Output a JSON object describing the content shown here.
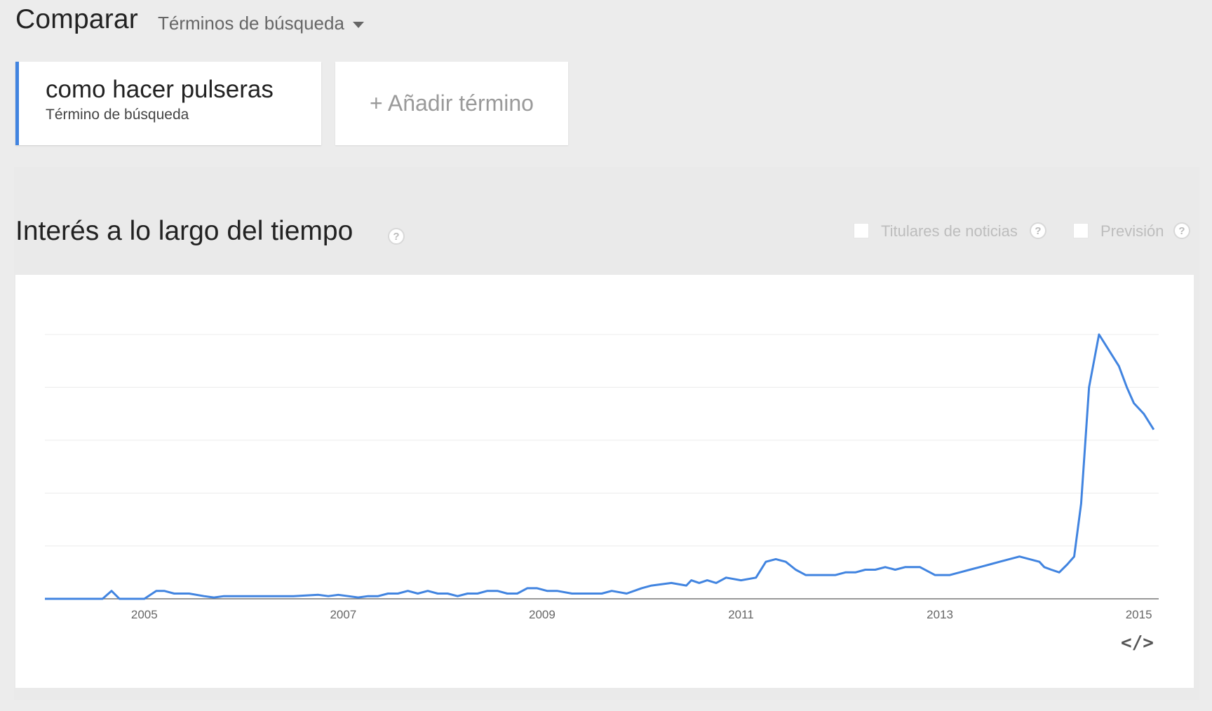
{
  "header": {
    "title": "Comparar",
    "dropdown_label": "Términos de búsqueda"
  },
  "terms": [
    {
      "name": "como hacer pulseras",
      "type": "Término de búsqueda",
      "color": "#4184e0"
    }
  ],
  "add_term_label": "+ Añadir término",
  "section": {
    "title": "Interés a lo largo del tiempo",
    "help_glyph": "?",
    "options": [
      {
        "label": "Titulares de noticias",
        "checked": false
      },
      {
        "label": "Previsión",
        "checked": false
      }
    ]
  },
  "embed_label": "</>",
  "chart_data": {
    "type": "line",
    "title": "",
    "xlabel": "",
    "ylabel": "",
    "x_ticks": [
      "2005",
      "2007",
      "2009",
      "2011",
      "2013",
      "2015"
    ],
    "xlim": [
      2004.0,
      2015.2
    ],
    "ylim": [
      0,
      100
    ],
    "grid": true,
    "series": [
      {
        "color": "#4184e0",
        "x": [
          2004.0,
          2004.58,
          2004.67,
          2004.75,
          2005.0,
          2005.12,
          2005.2,
          2005.3,
          2005.45,
          2005.6,
          2005.7,
          2005.8,
          2005.9,
          2006.0,
          2006.2,
          2006.5,
          2006.75,
          2006.85,
          2006.95,
          2007.05,
          2007.15,
          2007.25,
          2007.35,
          2007.45,
          2007.55,
          2007.65,
          2007.75,
          2007.85,
          2007.95,
          2008.05,
          2008.15,
          2008.25,
          2008.35,
          2008.45,
          2008.55,
          2008.65,
          2008.75,
          2008.85,
          2008.95,
          2009.05,
          2009.15,
          2009.3,
          2009.45,
          2009.6,
          2009.7,
          2009.85,
          2010.0,
          2010.1,
          2010.3,
          2010.45,
          2010.5,
          2010.58,
          2010.66,
          2010.75,
          2010.85,
          2011.0,
          2011.15,
          2011.25,
          2011.35,
          2011.45,
          2011.55,
          2011.65,
          2011.75,
          2011.85,
          2011.95,
          2012.05,
          2012.15,
          2012.25,
          2012.35,
          2012.45,
          2012.55,
          2012.65,
          2012.8,
          2012.95,
          2013.1,
          2013.2,
          2013.3,
          2013.4,
          2013.5,
          2013.6,
          2013.7,
          2013.8,
          2013.9,
          2014.0,
          2014.05,
          2014.12,
          2014.2,
          2014.28,
          2014.35,
          2014.42,
          2014.5,
          2014.6,
          2014.7,
          2014.8,
          2014.88,
          2014.95,
          2015.05,
          2015.15
        ]
      }
    ]
  }
}
